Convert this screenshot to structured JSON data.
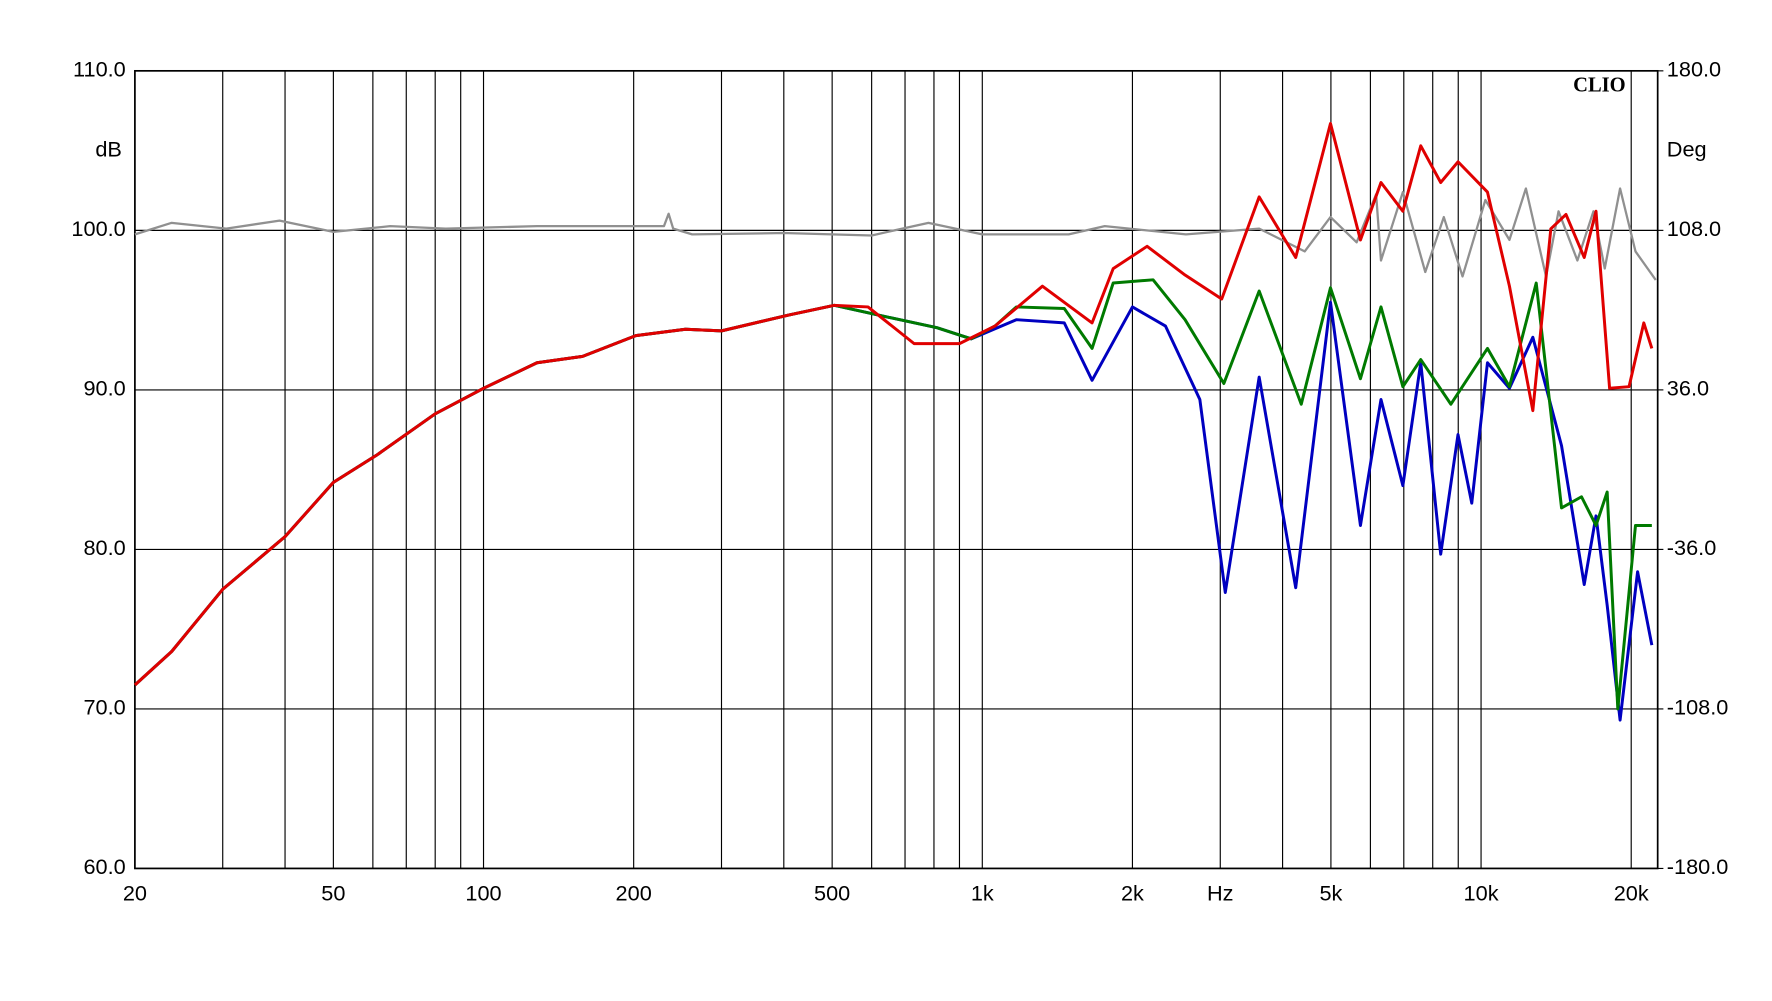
{
  "chart_data": {
    "type": "line",
    "x_scale": "log",
    "y_label": "dB",
    "y2_label": "Deg",
    "x_unit_label": "Hz",
    "annotation": "CLIO",
    "xlim": [
      20,
      22600
    ],
    "xticks": [
      20,
      50,
      100,
      200,
      500,
      {
        "value": 1000,
        "label": "1k"
      },
      {
        "value": 2000,
        "label": "2k"
      },
      {
        "value": 3000,
        "label": "Hz"
      },
      {
        "value": 5000,
        "label": "5k"
      },
      {
        "value": 10000,
        "label": "10k"
      },
      {
        "value": 20000,
        "label": "20k"
      }
    ],
    "xgrid": [
      30,
      40,
      60,
      70,
      80,
      90,
      300,
      400,
      600,
      700,
      800,
      900,
      4000,
      6000,
      7000,
      8000,
      9000
    ],
    "ylim": [
      60,
      110
    ],
    "yticks": [
      {
        "value": 60,
        "label": "60.0"
      },
      {
        "value": 70,
        "label": "70.0"
      },
      {
        "value": 80,
        "label": "80.0"
      },
      {
        "value": 90,
        "label": "90.0"
      },
      {
        "value": 100,
        "label": "100.0"
      },
      {
        "value": 110,
        "label": "110.0"
      }
    ],
    "y2lim": [
      -180,
      180
    ],
    "y2ticks": [
      {
        "value": -180,
        "label": "-180.0"
      },
      {
        "value": -108,
        "label": "-108.0"
      },
      {
        "value": -36,
        "label": "-36.0"
      },
      {
        "value": 36,
        "label": "36.0"
      },
      {
        "value": 108,
        "label": "108.0"
      },
      {
        "value": 180,
        "label": "180.0"
      }
    ],
    "grid": true,
    "series": [
      {
        "color": "#0000c0",
        "x": [
          20,
          23.7,
          30,
          40,
          50,
          61,
          80,
          100,
          128,
          158,
          202,
          254,
          300,
          410,
          505,
          660,
          811,
          950,
          1170,
          1460,
          1660,
          2000,
          2330,
          2730,
          3070,
          3590,
          4250,
          4990,
          5730,
          6300,
          6970,
          7570,
          8300,
          8990,
          9580,
          10300,
          11400,
          12700,
          14500,
          16100,
          17000,
          17900,
          19000,
          20600,
          22000
        ],
        "values": [
          71.5,
          73.6,
          77.5,
          80.8,
          84.2,
          85.9,
          88.5,
          90.1,
          91.7,
          92.1,
          93.4,
          93.8,
          93.7,
          94.7,
          95.3,
          94.5,
          93.9,
          93.2,
          94.4,
          94.2,
          90.6,
          95.2,
          94.0,
          89.4,
          77.3,
          90.8,
          77.6,
          95.5,
          81.5,
          89.4,
          84.0,
          91.7,
          79.7,
          87.2,
          82.9,
          91.7,
          90.1,
          93.3,
          86.5,
          77.8,
          82.1,
          76.5,
          69.3,
          78.6,
          74.0
        ]
      },
      {
        "color": "#007a00",
        "x": [
          20,
          23.7,
          30,
          40,
          50,
          61,
          80,
          100,
          128,
          158,
          202,
          254,
          300,
          410,
          505,
          660,
          811,
          950,
          1060,
          1170,
          1460,
          1660,
          1830,
          2200,
          2550,
          3050,
          3590,
          4360,
          4990,
          5730,
          6300,
          6970,
          7570,
          8700,
          10300,
          11400,
          12900,
          14500,
          15900,
          17000,
          17900,
          18800,
          20400,
          22000
        ],
        "values": [
          71.5,
          73.6,
          77.5,
          80.8,
          84.2,
          85.9,
          88.5,
          90.1,
          91.7,
          92.1,
          93.4,
          93.8,
          93.7,
          94.7,
          95.3,
          94.5,
          93.9,
          93.2,
          94.0,
          95.2,
          95.1,
          92.6,
          96.7,
          96.9,
          94.4,
          90.4,
          96.2,
          89.1,
          96.4,
          90.7,
          95.2,
          90.2,
          91.9,
          89.1,
          92.6,
          90.2,
          96.7,
          82.6,
          83.3,
          81.5,
          83.6,
          70.0,
          81.5,
          81.5
        ]
      },
      {
        "color": "#e00000",
        "x": [
          20,
          23.7,
          30,
          40,
          50,
          61,
          80,
          100,
          128,
          158,
          202,
          254,
          300,
          410,
          505,
          590,
          730,
          900,
          1060,
          1320,
          1660,
          1830,
          2140,
          2550,
          3020,
          3590,
          4250,
          4990,
          5730,
          6300,
          6970,
          7570,
          8300,
          8990,
          10300,
          11400,
          12700,
          13800,
          14800,
          16100,
          17000,
          18100,
          19800,
          21200,
          22000
        ],
        "values": [
          71.5,
          73.6,
          77.5,
          80.8,
          84.2,
          85.9,
          88.5,
          90.1,
          91.7,
          92.1,
          93.4,
          93.8,
          93.7,
          94.7,
          95.3,
          95.2,
          92.9,
          92.9,
          94.0,
          96.5,
          94.2,
          97.6,
          99.0,
          97.2,
          95.7,
          102.1,
          98.3,
          106.7,
          99.4,
          103.0,
          101.2,
          105.3,
          103.0,
          104.3,
          102.4,
          96.5,
          88.7,
          100.1,
          101.0,
          98.3,
          101.2,
          90.1,
          90.2,
          94.2,
          92.6
        ]
      },
      {
        "color": "#909090",
        "axis": "y2",
        "x": [
          20,
          23.7,
          30.5,
          39,
          50,
          65,
          84,
          128,
          202,
          230,
          235,
          240,
          262,
          400,
          600,
          780,
          1000,
          1490,
          1760,
          2560,
          3590,
          4430,
          4990,
          5630,
          6160,
          6300,
          6970,
          7730,
          8420,
          9180,
          10200,
          11400,
          12300,
          13500,
          14300,
          15600,
          16800,
          17700,
          19000,
          20400,
          22400
        ],
        "values": [
          106.2,
          111.4,
          108.8,
          112.4,
          107.3,
          109.9,
          108.8,
          109.9,
          109.9,
          109.9,
          115.5,
          108.8,
          106.2,
          106.8,
          105.7,
          111.4,
          106.2,
          106.2,
          109.9,
          106.2,
          108.8,
          98.5,
          114.0,
          102.6,
          124.3,
          94.4,
          125.3,
          89.2,
          114.0,
          87.2,
          121.7,
          103.7,
          126.9,
          87.2,
          116.6,
          94.4,
          116.6,
          90.8,
          126.9,
          98.5,
          85.6
        ]
      }
    ]
  }
}
